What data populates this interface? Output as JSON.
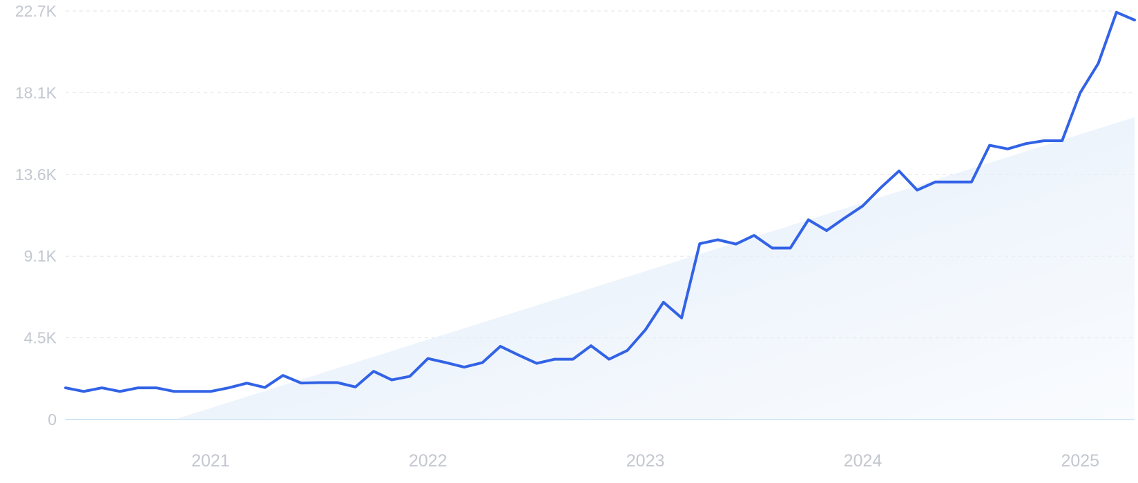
{
  "chart_data": {
    "type": "line",
    "title": "",
    "xlabel": "",
    "ylabel": "",
    "y_ticks": [
      "0",
      "4.5K",
      "9.1K",
      "13.6K",
      "18.1K",
      "22.7K"
    ],
    "y_tick_values": [
      0,
      4540,
      9080,
      13620,
      18160,
      22700
    ],
    "ylim": [
      0,
      22700
    ],
    "x_ticks": [
      "2021",
      "2022",
      "2023",
      "2024",
      "2025"
    ],
    "x_tick_dates": [
      "2021-01",
      "2022-01",
      "2023-01",
      "2024-01",
      "2025-01"
    ],
    "xlim": [
      "2020-05",
      "2025-04"
    ],
    "grid": true,
    "legend": "none",
    "line_color": "#3263e6",
    "trend_color": "#d9e8f8",
    "x": [
      "2020-05",
      "2020-06",
      "2020-07",
      "2020-08",
      "2020-09",
      "2020-10",
      "2020-11",
      "2020-12",
      "2021-01",
      "2021-02",
      "2021-03",
      "2021-04",
      "2021-05",
      "2021-06",
      "2021-07",
      "2021-08",
      "2021-09",
      "2021-10",
      "2021-11",
      "2021-12",
      "2022-01",
      "2022-02",
      "2022-03",
      "2022-04",
      "2022-05",
      "2022-06",
      "2022-07",
      "2022-08",
      "2022-09",
      "2022-10",
      "2022-11",
      "2022-12",
      "2023-01",
      "2023-02",
      "2023-03",
      "2023-04",
      "2023-05",
      "2023-06",
      "2023-07",
      "2023-08",
      "2023-09",
      "2023-10",
      "2023-11",
      "2023-12",
      "2024-01",
      "2024-02",
      "2024-03",
      "2024-04",
      "2024-05",
      "2024-06",
      "2024-07",
      "2024-08",
      "2024-09",
      "2024-10",
      "2024-11",
      "2024-12",
      "2025-01",
      "2025-02",
      "2025-03",
      "2025-04"
    ],
    "series": [
      {
        "values": [
          1760,
          1560,
          1760,
          1560,
          1760,
          1760,
          1560,
          1560,
          1560,
          1760,
          2020,
          1780,
          2450,
          2030,
          2050,
          2050,
          1810,
          2680,
          2200,
          2400,
          3390,
          3160,
          2910,
          3160,
          4070,
          3580,
          3120,
          3350,
          3350,
          4100,
          3350,
          3840,
          4980,
          6520,
          5650,
          9770,
          9990,
          9750,
          10230,
          9530,
          9530,
          11100,
          10500,
          11200,
          11870,
          12890,
          13810,
          12750,
          13200,
          13200,
          13200,
          15240,
          15040,
          15330,
          15490,
          15490,
          18160,
          19790,
          22630,
          22200
        ]
      }
    ],
    "trend": {
      "x": [
        "2020-11",
        "2025-04"
      ],
      "values": [
        0,
        16800
      ]
    }
  }
}
